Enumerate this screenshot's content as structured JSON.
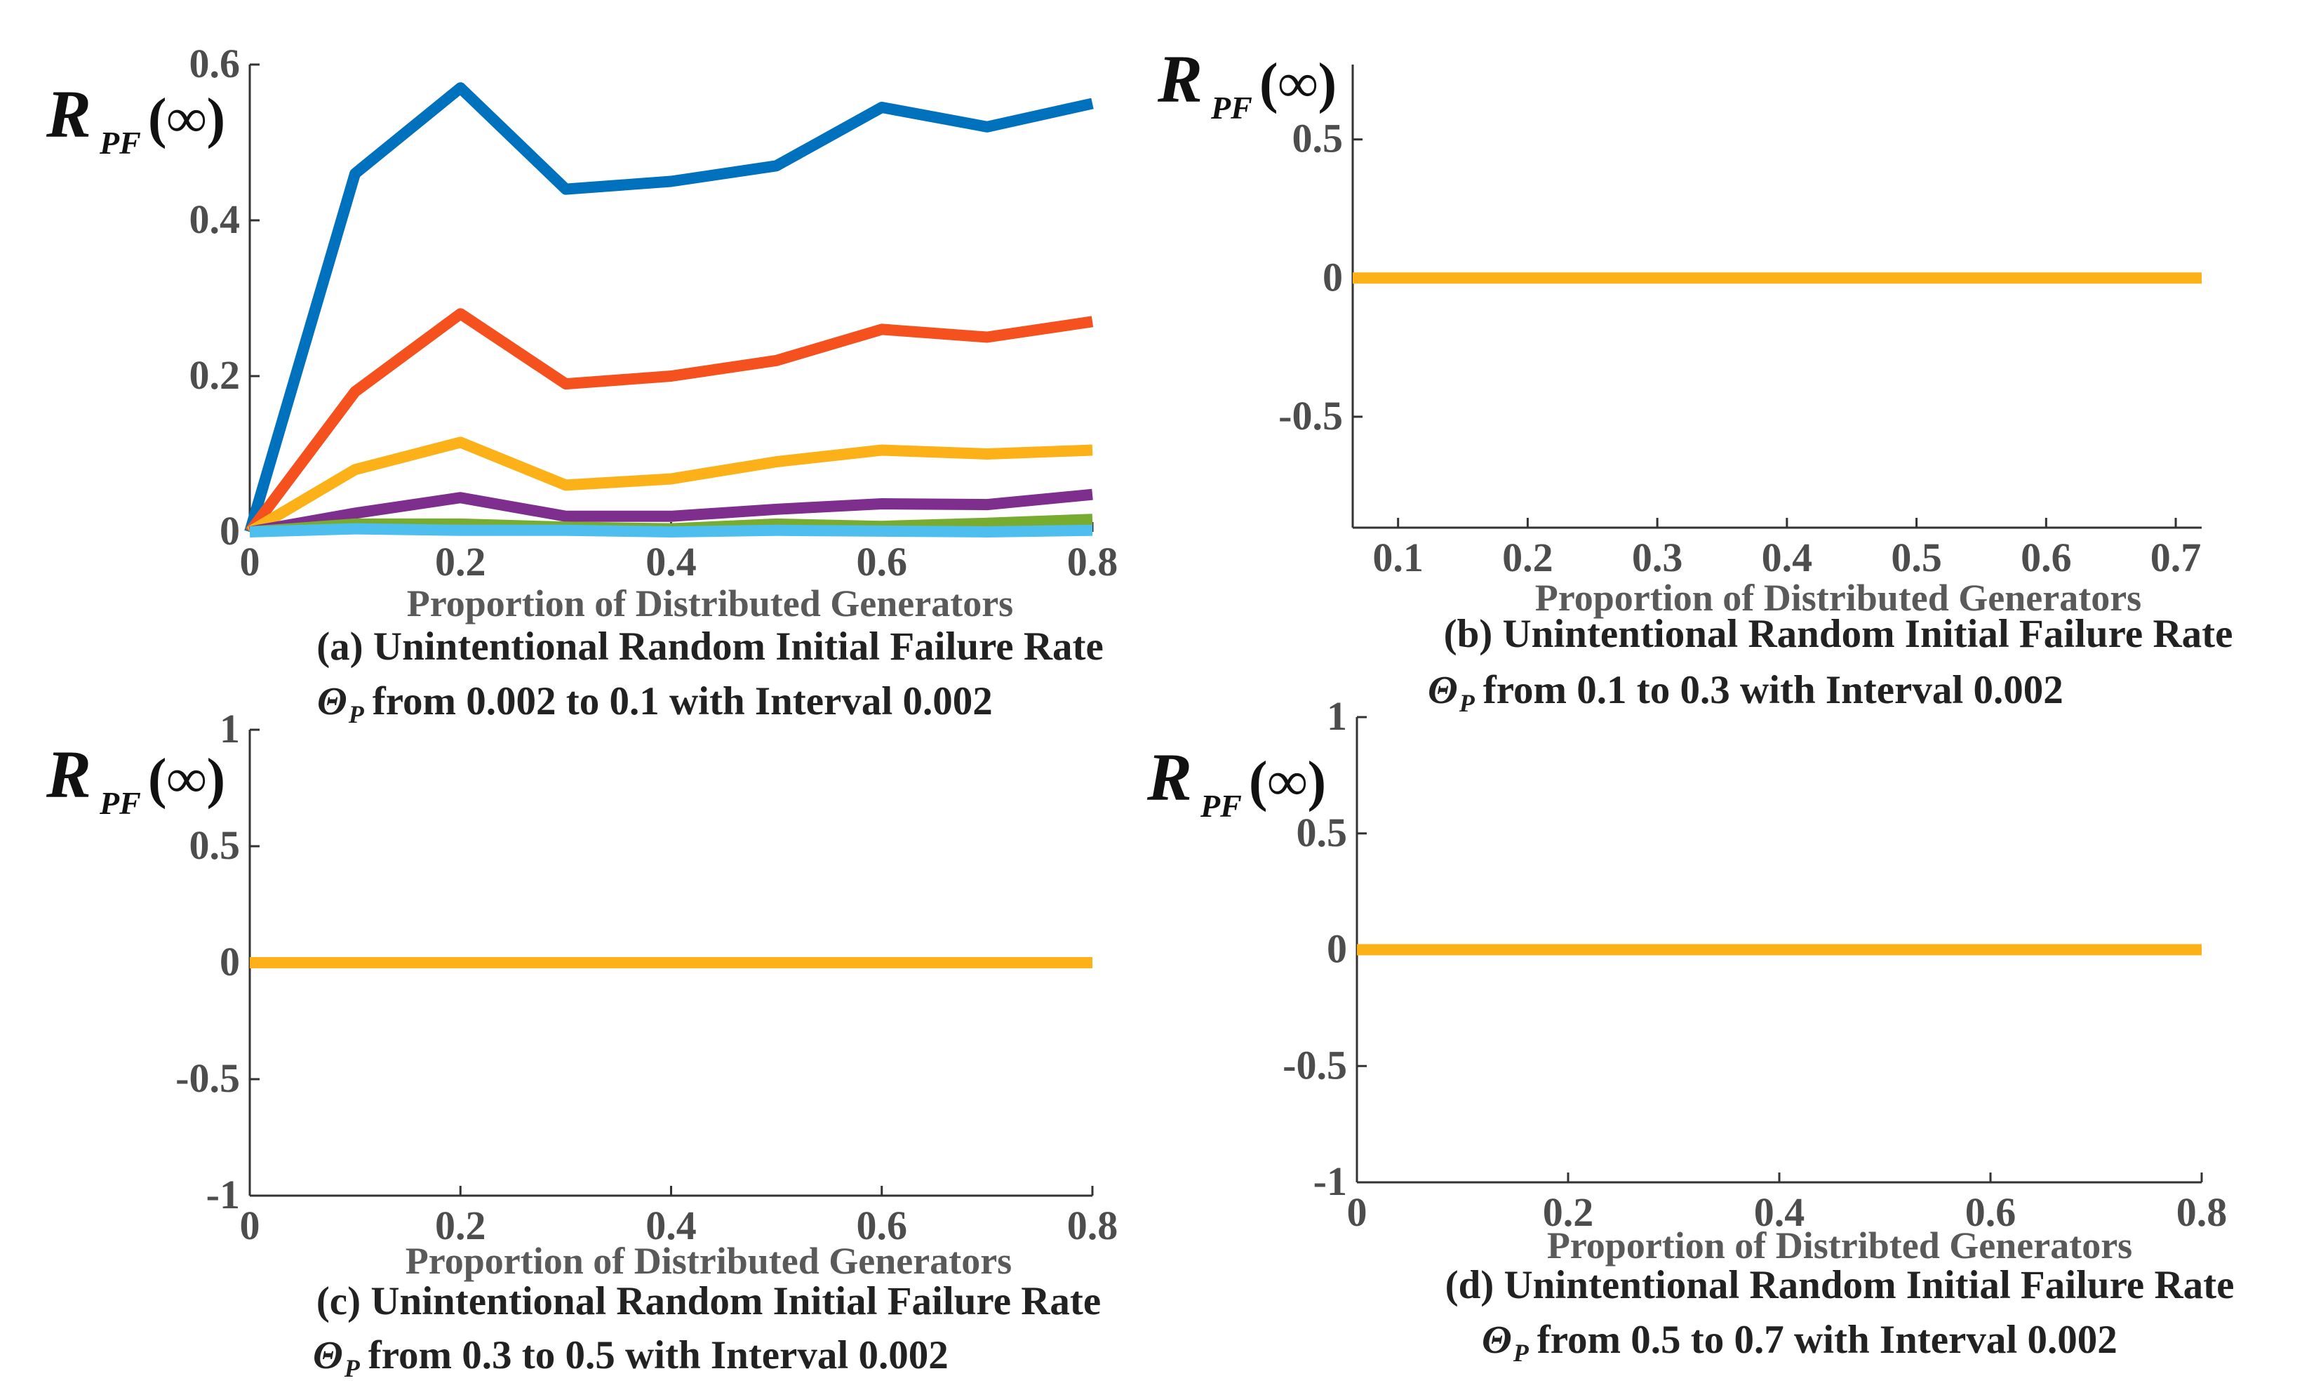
{
  "chart_data": [
    {
      "type": "line",
      "panel": "a",
      "ylabel": {
        "main": "R",
        "sub": "PF",
        "suffix": "(∞)"
      },
      "xlabel": "Proportion of Distributed Generators",
      "caption_line1": "(a) Unintentional Random Initial Failure Rate",
      "caption_theta": "Θ",
      "caption_theta_sub": "P",
      "caption_line2": "from 0.002 to 0.1 with Interval 0.002",
      "xlim": [
        0,
        0.8
      ],
      "ylim": [
        0,
        0.6
      ],
      "xticks": [
        0,
        0.2,
        0.4,
        0.6,
        0.8
      ],
      "xtick_labels": [
        "0",
        "0.2",
        "0.4",
        "0.6",
        "0.8"
      ],
      "yticks": [
        0,
        0.2,
        0.4,
        0.6
      ],
      "ytick_labels": [
        "0",
        "0.2",
        "0.4",
        "0.6"
      ],
      "x": [
        0,
        0.1,
        0.2,
        0.3,
        0.4,
        0.5,
        0.6,
        0.7,
        0.8
      ],
      "series": [
        {
          "name": "series-1",
          "color": "#0072bd",
          "values": [
            0.0,
            0.46,
            0.57,
            0.44,
            0.45,
            0.47,
            0.545,
            0.52,
            0.55
          ]
        },
        {
          "name": "series-2",
          "color": "#f4511e",
          "values": [
            0.0,
            0.18,
            0.28,
            0.19,
            0.2,
            0.22,
            0.26,
            0.25,
            0.27
          ]
        },
        {
          "name": "series-3",
          "color": "#fbb117",
          "values": [
            0.0,
            0.08,
            0.115,
            0.06,
            0.068,
            0.09,
            0.105,
            0.1,
            0.105
          ]
        },
        {
          "name": "series-4",
          "color": "#7e2f8e",
          "values": [
            0.0,
            0.024,
            0.044,
            0.02,
            0.02,
            0.029,
            0.036,
            0.035,
            0.048
          ]
        },
        {
          "name": "series-5",
          "color": "#77ac30",
          "values": [
            0.0,
            0.01,
            0.01,
            0.006,
            0.004,
            0.01,
            0.007,
            0.011,
            0.016
          ]
        },
        {
          "name": "series-6",
          "color": "#4dbeee",
          "values": [
            0.0,
            0.004,
            0.002,
            0.002,
            0.0,
            0.002,
            0.001,
            0.0,
            0.002
          ]
        }
      ]
    },
    {
      "type": "line",
      "panel": "b",
      "ylabel": {
        "main": "R",
        "sub": "PF",
        "suffix": "(∞)"
      },
      "xlabel": "Proportion of Distributed Generators",
      "caption_line1": "(b) Unintentional Random Initial Failure Rate",
      "caption_theta": "Θ",
      "caption_theta_sub": "P",
      "caption_line2": "from 0.1 to 0.3 with Interval 0.002",
      "xlim": [
        0.065,
        0.72
      ],
      "ylim": [
        -0.9,
        0.77
      ],
      "xticks": [
        0.1,
        0.2,
        0.3,
        0.4,
        0.5,
        0.6,
        0.7
      ],
      "xtick_labels": [
        "0.1",
        "0.2",
        "0.3",
        "0.4",
        "0.5",
        "0.6",
        "0.7"
      ],
      "yticks": [
        -0.5,
        0,
        0.5
      ],
      "ytick_labels": [
        "-0.5",
        "0",
        "0.5"
      ],
      "x": [
        0.065,
        0.72
      ],
      "series": [
        {
          "name": "series-1",
          "color": "#fbb117",
          "values": [
            0,
            0
          ]
        }
      ]
    },
    {
      "type": "line",
      "panel": "c",
      "ylabel": {
        "main": "R",
        "sub": "PF",
        "suffix": "(∞)"
      },
      "xlabel": "Proportion of Distributed Generators",
      "caption_line1": "(c) Unintentional Random Initial Failure Rate",
      "caption_theta": "Θ",
      "caption_theta_sub": "P",
      "caption_line2": "from 0.3 to 0.5 with Interval 0.002",
      "xlim": [
        0,
        0.8
      ],
      "ylim": [
        -1,
        1
      ],
      "xticks": [
        0,
        0.2,
        0.4,
        0.6,
        0.8
      ],
      "xtick_labels": [
        "0",
        "0.2",
        "0.4",
        "0.6",
        "0.8"
      ],
      "yticks": [
        -1,
        -0.5,
        0,
        0.5,
        1
      ],
      "ytick_labels": [
        "-1",
        "-0.5",
        "0",
        "0.5",
        "1"
      ],
      "x": [
        0,
        0.8
      ],
      "series": [
        {
          "name": "series-1",
          "color": "#fbb117",
          "values": [
            0,
            0
          ]
        }
      ]
    },
    {
      "type": "line",
      "panel": "d",
      "ylabel": {
        "main": "R",
        "sub": "PF",
        "suffix": "(∞)"
      },
      "xlabel": "Proportion of Distribted Generators",
      "caption_line1": "(d) Unintentional Random Initial Failure Rate",
      "caption_theta": "Θ",
      "caption_theta_sub": "P",
      "caption_line2": "from 0.5 to 0.7 with Interval 0.002",
      "xlim": [
        0,
        0.8
      ],
      "ylim": [
        -1,
        1
      ],
      "xticks": [
        0,
        0.2,
        0.4,
        0.6,
        0.8
      ],
      "xtick_labels": [
        "0",
        "0.2",
        "0.4",
        "0.6",
        "0.8"
      ],
      "yticks": [
        -1,
        -0.5,
        0,
        0.5,
        1
      ],
      "ytick_labels": [
        "-1",
        "-0.5",
        "0",
        "0.5",
        "1"
      ],
      "x": [
        0,
        0.8
      ],
      "series": [
        {
          "name": "series-1",
          "color": "#fbb117",
          "values": [
            0,
            0
          ]
        }
      ]
    }
  ]
}
